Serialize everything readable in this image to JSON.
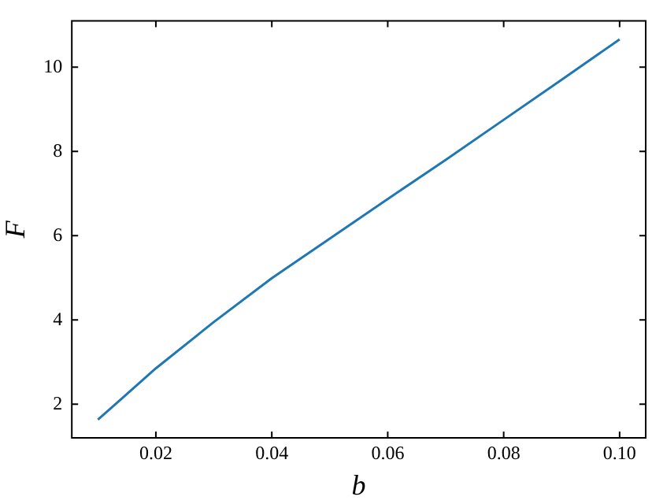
{
  "chart_data": {
    "type": "line",
    "xlabel": "b",
    "ylabel": "F",
    "x": [
      0.01,
      0.02,
      0.03,
      0.04,
      0.05,
      0.06,
      0.07,
      0.08,
      0.09,
      0.1
    ],
    "series": [
      {
        "color": "#1f77b4",
        "values": [
          1.63,
          2.85,
          3.95,
          4.99,
          5.93,
          6.87,
          7.8,
          8.75,
          9.7,
          10.66
        ]
      }
    ],
    "xlim": [
      0.0055,
      0.1045
    ],
    "ylim": [
      1.2,
      11.1
    ],
    "xticks": [
      {
        "value": 0.02,
        "label": "0.02"
      },
      {
        "value": 0.04,
        "label": "0.04"
      },
      {
        "value": 0.06,
        "label": "0.06"
      },
      {
        "value": 0.08,
        "label": "0.08"
      },
      {
        "value": 0.1,
        "label": "0.10"
      }
    ],
    "yticks": [
      2,
      4,
      6,
      8,
      10
    ],
    "grid": false,
    "legend": false,
    "marker": "none",
    "line_style": "solid"
  }
}
